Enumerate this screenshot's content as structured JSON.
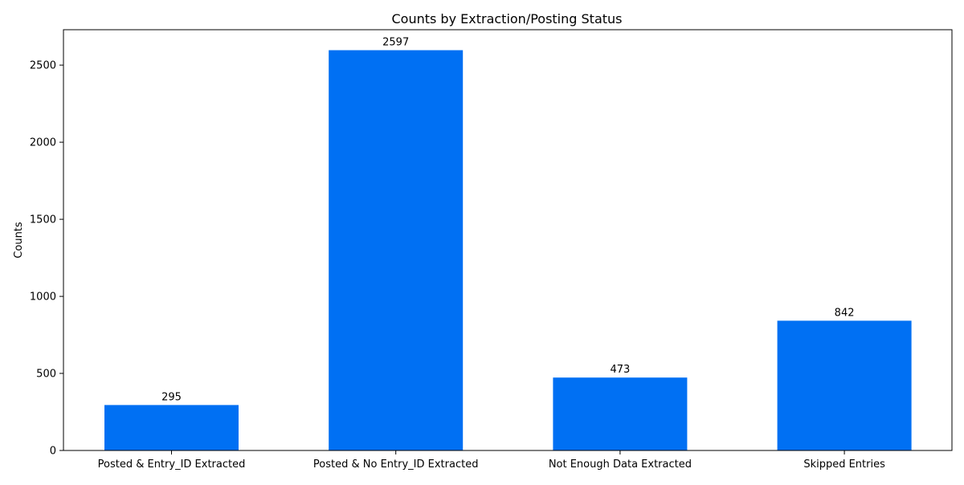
{
  "chart_data": {
    "type": "bar",
    "title": "Counts by Extraction/Posting Status",
    "xlabel": "",
    "ylabel": "Counts",
    "categories": [
      "Posted & Entry_ID Extracted",
      "Posted & No Entry_ID Extracted",
      "Not Enough Data Extracted",
      "Skipped Entries"
    ],
    "values": [
      295,
      2597,
      473,
      842
    ],
    "value_labels": [
      "295",
      "2597",
      "473",
      "842"
    ],
    "ylim": [
      0,
      2730
    ],
    "yticks": [
      0,
      500,
      1000,
      1500,
      2000,
      2500
    ],
    "ytick_labels": [
      "0",
      "500",
      "1000",
      "1500",
      "2000",
      "2500"
    ],
    "grid": false,
    "legend": "none",
    "bar_color": "#0070f3"
  }
}
